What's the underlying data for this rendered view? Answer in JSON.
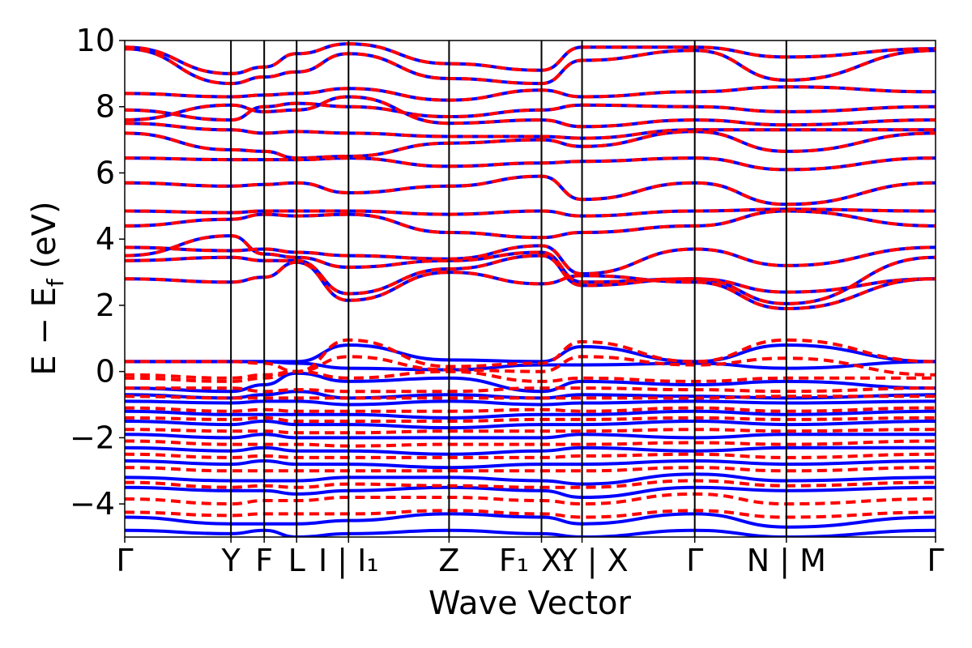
{
  "chart_data": {
    "type": "line",
    "title": "",
    "xlabel": "Wave Vector",
    "ylabel": "E − E_f (eV)",
    "ylabel_main": "E − E",
    "ylabel_sub": "f",
    "ylabel_unit": " (eV)",
    "ylim": [
      -5,
      10
    ],
    "xlim": [
      0,
      1
    ],
    "grid": false,
    "legend": "none",
    "y_ticks": [
      -4,
      -2,
      0,
      2,
      4,
      6,
      8,
      10
    ],
    "y_tick_labels": [
      "−4",
      "−2",
      "0",
      "2",
      "4",
      "6",
      "8",
      "10"
    ],
    "kpath_positions": [
      0.0,
      0.131,
      0.172,
      0.212,
      0.276,
      0.4,
      0.514,
      0.564,
      0.703,
      0.816,
      1.0
    ],
    "kpath_lines": [
      0.131,
      0.172,
      0.212,
      0.276,
      0.4,
      0.514,
      0.564,
      0.703,
      0.816
    ],
    "kpath_labels": [
      {
        "label": "Γ",
        "x": 0.0
      },
      {
        "label": "Y",
        "x": 0.131
      },
      {
        "label": "F",
        "x": 0.172
      },
      {
        "label": "L",
        "x": 0.212
      },
      {
        "label": "I | I₁",
        "x": 0.276
      },
      {
        "label": "Z",
        "x": 0.4
      },
      {
        "label": "F₁",
        "x": 0.48
      },
      {
        "label": "X₁",
        "x": 0.534
      },
      {
        "label": "Y | X",
        "x": 0.578
      },
      {
        "label": "Γ",
        "x": 0.703
      },
      {
        "label": "N | M",
        "x": 0.816
      },
      {
        "label": "Γ",
        "x": 1.0
      }
    ],
    "series": [
      {
        "style": "solid",
        "color": "#0000ff"
      },
      {
        "style": "dashed",
        "color": "#ff0000"
      }
    ],
    "conduction_bands": [
      [
        2.8,
        2.7,
        2.85,
        3.3,
        2.15,
        3.0,
        2.65,
        2.9,
        2.7,
        1.9,
        2.8
      ],
      [
        3.35,
        3.45,
        3.35,
        3.35,
        2.35,
        3.1,
        3.5,
        2.6,
        2.8,
        2.4,
        2.8
      ],
      [
        3.5,
        4.1,
        3.55,
        3.45,
        3.15,
        3.35,
        3.6,
        2.7,
        2.8,
        2.05,
        3.45
      ],
      [
        3.75,
        3.65,
        3.7,
        3.6,
        3.5,
        3.4,
        3.8,
        2.95,
        3.7,
        3.2,
        3.75
      ],
      [
        4.4,
        4.6,
        4.75,
        4.7,
        4.75,
        4.2,
        4.05,
        4.2,
        4.4,
        4.85,
        4.4
      ],
      [
        4.85,
        4.8,
        4.85,
        4.85,
        4.85,
        4.75,
        4.85,
        4.7,
        4.85,
        4.9,
        4.85
      ],
      [
        5.7,
        5.6,
        5.65,
        5.7,
        5.4,
        5.6,
        5.9,
        5.2,
        5.7,
        5.05,
        5.7
      ],
      [
        6.45,
        6.4,
        6.4,
        6.4,
        6.45,
        6.2,
        6.3,
        6.35,
        6.45,
        6.1,
        6.45
      ],
      [
        7.2,
        6.7,
        6.65,
        6.45,
        6.5,
        6.9,
        7.0,
        6.8,
        7.25,
        6.65,
        7.2
      ],
      [
        7.5,
        7.3,
        7.2,
        7.25,
        7.2,
        7.1,
        7.1,
        7.05,
        7.3,
        7.3,
        7.3
      ],
      [
        7.6,
        8.05,
        7.85,
        7.9,
        8.3,
        7.5,
        7.6,
        7.4,
        7.6,
        7.45,
        7.6
      ],
      [
        7.9,
        7.6,
        8.0,
        8.1,
        8.0,
        7.7,
        7.9,
        8.05,
        8.0,
        7.85,
        8.0
      ],
      [
        8.4,
        8.3,
        8.35,
        8.4,
        8.55,
        8.2,
        8.5,
        8.3,
        8.45,
        8.6,
        8.45
      ],
      [
        9.75,
        8.7,
        8.9,
        9.05,
        9.6,
        8.85,
        8.7,
        9.4,
        9.7,
        8.8,
        9.7
      ],
      [
        9.8,
        9.0,
        9.2,
        9.6,
        9.9,
        9.3,
        9.1,
        9.8,
        9.8,
        9.5,
        9.75
      ]
    ],
    "valence_bands_spin_up": [
      [
        0.3,
        0.3,
        0.3,
        0.3,
        0.8,
        0.35,
        0.3,
        0.75,
        0.3,
        0.8,
        0.3
      ],
      [
        0.3,
        0.3,
        0.3,
        0.25,
        0.1,
        0.05,
        0.2,
        0.2,
        0.25,
        0.1,
        0.3
      ],
      [
        -0.5,
        -0.6,
        -0.4,
        -0.05,
        -0.3,
        -0.2,
        -0.6,
        -0.3,
        -0.4,
        -0.3,
        -0.5
      ],
      [
        -0.7,
        -0.8,
        -0.7,
        -0.6,
        -0.8,
        -0.7,
        -0.8,
        -0.7,
        -0.75,
        -0.8,
        -0.7
      ],
      [
        -0.9,
        -0.95,
        -0.9,
        -0.9,
        -1.0,
        -0.9,
        -1.0,
        -0.95,
        -0.9,
        -0.95,
        -0.9
      ],
      [
        -1.2,
        -1.3,
        -1.3,
        -1.3,
        -1.3,
        -1.4,
        -1.3,
        -1.3,
        -1.2,
        -1.3,
        -1.2
      ],
      [
        -1.5,
        -1.6,
        -1.5,
        -1.6,
        -1.6,
        -1.7,
        -1.6,
        -1.6,
        -1.5,
        -1.6,
        -1.5
      ],
      [
        -1.9,
        -2.0,
        -1.9,
        -2.0,
        -2.0,
        -2.0,
        -2.0,
        -1.9,
        -2.0,
        -1.9,
        -1.9
      ],
      [
        -2.3,
        -2.4,
        -2.3,
        -2.4,
        -2.4,
        -2.5,
        -2.4,
        -2.3,
        -2.4,
        -2.3,
        -2.3
      ],
      [
        -2.7,
        -2.8,
        -2.7,
        -2.8,
        -2.8,
        -2.9,
        -2.8,
        -2.8,
        -2.7,
        -2.8,
        -2.7
      ],
      [
        -3.2,
        -3.3,
        -3.3,
        -3.3,
        -3.2,
        -3.2,
        -3.3,
        -3.4,
        -3.1,
        -3.3,
        -3.2
      ],
      [
        -3.5,
        -3.6,
        -3.6,
        -3.7,
        -3.6,
        -3.5,
        -3.6,
        -3.8,
        -3.5,
        -3.6,
        -3.5
      ],
      [
        -4.4,
        -4.6,
        -4.6,
        -4.6,
        -4.5,
        -4.3,
        -4.4,
        -4.6,
        -4.3,
        -4.7,
        -4.4
      ],
      [
        -4.8,
        -4.9,
        -4.8,
        -5.0,
        -4.9,
        -4.8,
        -4.9,
        -5.0,
        -4.8,
        -5.0,
        -4.8
      ]
    ],
    "valence_bands_spin_down": [
      [
        0.3,
        0.3,
        0.25,
        0.0,
        0.95,
        0.15,
        0.25,
        0.9,
        0.3,
        0.95,
        0.3
      ],
      [
        -0.1,
        -0.2,
        -0.1,
        0.0,
        0.45,
        0.05,
        0.0,
        0.45,
        0.2,
        0.4,
        -0.1
      ],
      [
        -0.2,
        -0.3,
        -0.2,
        0.0,
        -0.2,
        0.0,
        -0.3,
        -0.2,
        -0.3,
        -0.2,
        -0.2
      ],
      [
        -0.5,
        -0.5,
        -0.6,
        -0.55,
        -0.6,
        -0.6,
        -0.5,
        -0.5,
        -0.55,
        -0.6,
        -0.5
      ],
      [
        -0.75,
        -0.8,
        -0.8,
        -0.8,
        -0.8,
        -0.8,
        -0.8,
        -0.8,
        -0.8,
        -0.75,
        -0.75
      ],
      [
        -1.1,
        -1.2,
        -1.15,
        -1.2,
        -1.2,
        -1.2,
        -1.15,
        -1.2,
        -1.1,
        -1.2,
        -1.1
      ],
      [
        -1.4,
        -1.45,
        -1.4,
        -1.5,
        -1.5,
        -1.5,
        -1.45,
        -1.45,
        -1.4,
        -1.45,
        -1.4
      ],
      [
        -1.75,
        -1.8,
        -1.8,
        -1.85,
        -1.85,
        -1.8,
        -1.8,
        -1.8,
        -1.75,
        -1.8,
        -1.75
      ],
      [
        -2.1,
        -2.2,
        -2.2,
        -2.2,
        -2.25,
        -2.2,
        -2.2,
        -2.2,
        -2.15,
        -2.2,
        -2.1
      ],
      [
        -2.5,
        -2.6,
        -2.55,
        -2.6,
        -2.6,
        -2.6,
        -2.6,
        -2.55,
        -2.5,
        -2.6,
        -2.5
      ],
      [
        -2.9,
        -3.0,
        -3.0,
        -3.0,
        -3.0,
        -3.0,
        -3.0,
        -3.0,
        -2.9,
        -3.0,
        -2.9
      ],
      [
        -3.35,
        -3.5,
        -3.45,
        -3.5,
        -3.4,
        -3.45,
        -3.5,
        -3.5,
        -3.3,
        -3.45,
        -3.35
      ],
      [
        -3.85,
        -4.0,
        -3.9,
        -3.9,
        -3.8,
        -3.8,
        -3.9,
        -4.0,
        -3.7,
        -4.0,
        -3.85
      ],
      [
        -4.25,
        -4.35,
        -4.3,
        -4.3,
        -4.3,
        -4.2,
        -4.3,
        -4.4,
        -4.2,
        -4.4,
        -4.25
      ]
    ]
  }
}
